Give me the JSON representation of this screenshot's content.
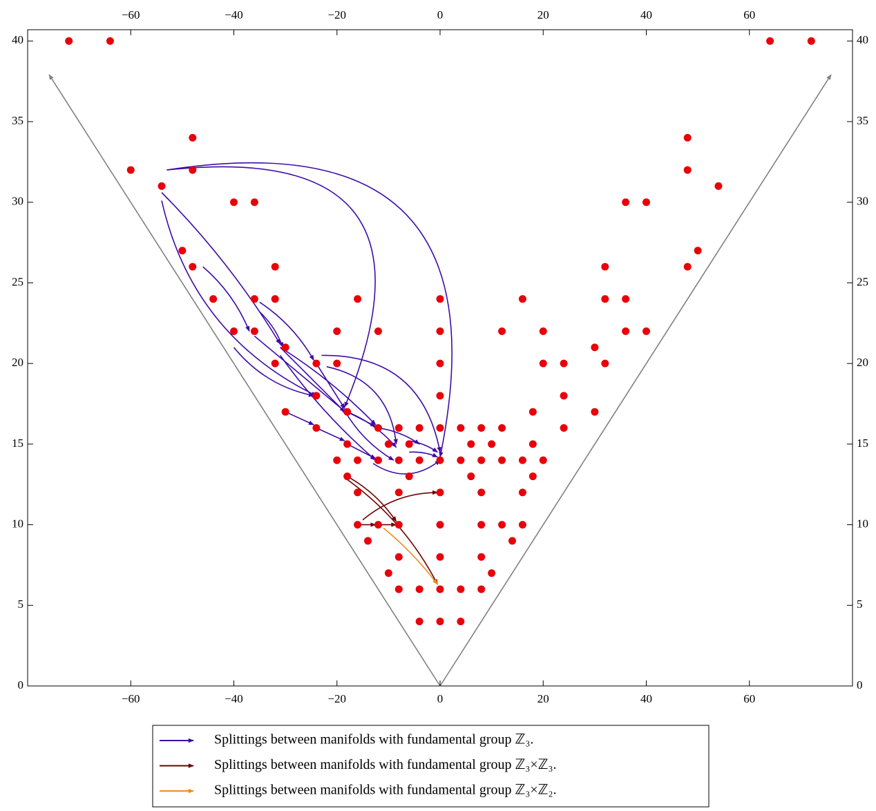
{
  "chart_data": {
    "type": "scatter",
    "color": "#e8000b",
    "x": [
      -72,
      -64,
      64,
      72,
      -48,
      48,
      -60,
      -48,
      48,
      -54,
      54,
      -40,
      -36,
      36,
      40,
      -50,
      50,
      -48,
      -32,
      32,
      48,
      -44,
      -36,
      -32,
      -16,
      0,
      16,
      32,
      36,
      -40,
      -36,
      -20,
      -12,
      0,
      12,
      20,
      36,
      40,
      -30,
      30,
      -32,
      -24,
      -20,
      0,
      20,
      24,
      32,
      -24,
      0,
      24,
      -30,
      -18,
      18,
      30,
      -24,
      -12,
      -8,
      -4,
      0,
      4,
      8,
      12,
      24,
      -18,
      -10,
      -6,
      6,
      10,
      18,
      -20,
      -16,
      -12,
      -8,
      -4,
      0,
      4,
      8,
      12,
      16,
      20,
      -18,
      -6,
      6,
      18,
      -16,
      -8,
      0,
      8,
      16,
      -16,
      -12,
      -8,
      0,
      8,
      12,
      16,
      -14,
      14,
      -8,
      0,
      8,
      -10,
      10,
      -8,
      -4,
      0,
      4,
      8,
      -4,
      0,
      4
    ],
    "y": [
      40,
      40,
      40,
      40,
      34,
      34,
      32,
      32,
      32,
      31,
      31,
      30,
      30,
      30,
      30,
      27,
      27,
      26,
      26,
      26,
      26,
      24,
      24,
      24,
      24,
      24,
      24,
      24,
      24,
      22,
      22,
      22,
      22,
      22,
      22,
      22,
      22,
      22,
      21,
      21,
      20,
      20,
      20,
      20,
      20,
      20,
      20,
      18,
      18,
      18,
      17,
      17,
      17,
      17,
      16,
      16,
      16,
      16,
      16,
      16,
      16,
      16,
      16,
      15,
      15,
      15,
      15,
      15,
      15,
      14,
      14,
      14,
      14,
      14,
      14,
      14,
      14,
      14,
      14,
      14,
      13,
      13,
      13,
      13,
      12,
      12,
      12,
      12,
      12,
      10,
      10,
      10,
      10,
      10,
      10,
      10,
      9,
      9,
      8,
      8,
      8,
      7,
      7,
      6,
      6,
      6,
      6,
      6,
      4,
      4,
      4
    ],
    "arrows": [
      {
        "name": "Splittings between manifolds with fundamental group ℤ₃.",
        "color": "#3d0aa8",
        "segments": [
          [
            -53,
            32,
            0,
            14.2
          ],
          [
            -53,
            32,
            -18.5,
            17.3
          ],
          [
            -54,
            30.6,
            -31,
            21.2
          ],
          [
            -54,
            30.1,
            -24,
            18
          ],
          [
            -46,
            26,
            -37,
            22
          ],
          [
            -35,
            23.8,
            -24.5,
            20.2
          ],
          [
            -35,
            23.2,
            -30.5,
            21
          ],
          [
            -31,
            21,
            -18.5,
            17
          ],
          [
            -31,
            21,
            -12.5,
            16.2
          ],
          [
            -31,
            20.5,
            -12.5,
            14
          ],
          [
            -36,
            21.7,
            -18,
            16.9
          ],
          [
            -30,
            17,
            -24.5,
            16.2
          ],
          [
            -24,
            16,
            -18.5,
            15.2
          ],
          [
            -18,
            15,
            -12.5,
            14.1
          ],
          [
            -24,
            20,
            -18.5,
            17.2
          ],
          [
            -23,
            20.5,
            0,
            14.5
          ],
          [
            -22,
            19.8,
            -8.5,
            15
          ],
          [
            -18,
            17,
            -8.5,
            14.8
          ],
          [
            -18,
            17,
            -12.5,
            16.1
          ],
          [
            -18,
            16.8,
            -9,
            14
          ],
          [
            -12,
            16,
            -4,
            15
          ],
          [
            -6,
            15.2,
            -0.5,
            14.5
          ],
          [
            -13,
            13.8,
            0,
            14
          ],
          [
            -40,
            21,
            -24.5,
            18
          ],
          [
            -6,
            14.5,
            -0.5,
            14.2
          ]
        ]
      },
      {
        "name": "Splittings between manifolds with fundamental group ℤ₃×ℤ₃.",
        "color": "#6e0000",
        "segments": [
          [
            -18,
            13,
            -8.5,
            10.2
          ],
          [
            -18,
            12.8,
            -0.5,
            6.3
          ],
          [
            -16,
            10,
            -12.5,
            10
          ],
          [
            -11.5,
            10,
            -8.5,
            10
          ],
          [
            -15,
            10.3,
            -0.5,
            12
          ]
        ]
      },
      {
        "name": "Splittings between manifolds with fundamental group ℤ₃×ℤ₂.",
        "color": "#f08a1c",
        "segments": [
          [
            -11,
            9.8,
            -0.5,
            6.3
          ]
        ]
      }
    ],
    "xlim": [
      -80,
      80
    ],
    "ylim": [
      0,
      40.7
    ],
    "xticks": [
      {
        "value": -60,
        "label": "−60"
      },
      {
        "value": -40,
        "label": "−40"
      },
      {
        "value": -20,
        "label": "−20"
      },
      0,
      20,
      40,
      60
    ],
    "yticks": [
      0,
      5,
      10,
      15,
      20,
      25,
      30,
      35,
      40
    ]
  }
}
